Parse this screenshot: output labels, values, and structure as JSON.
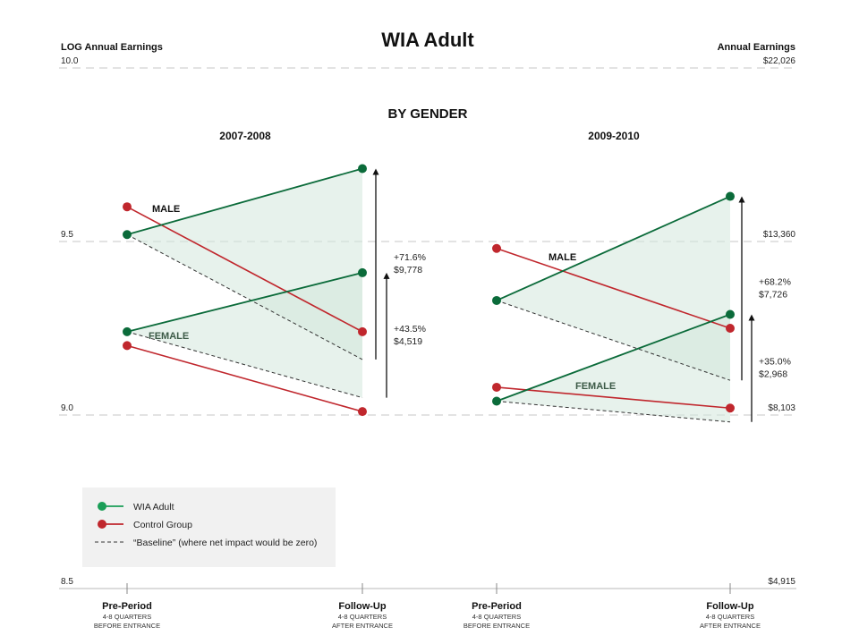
{
  "chart_data": {
    "type": "line",
    "title": "WIA Adult",
    "subtitle": "BY GENDER",
    "y_left_label": "LOG Annual Earnings",
    "y_right_label": "Annual Earnings",
    "ylim": [
      8.5,
      10.0
    ],
    "y_ticks": [
      {
        "log": 10.0,
        "label": "10.0",
        "dollars": "$22,026"
      },
      {
        "log": 9.5,
        "label": "9.5",
        "dollars": "$13,360"
      },
      {
        "log": 9.0,
        "label": "9.0",
        "dollars": "$8,103"
      },
      {
        "log": 8.5,
        "label": "8.5",
        "dollars": "$4,915"
      }
    ],
    "x_categories": [
      {
        "main": "Pre-Period",
        "sub1": "4-8 QUARTERS",
        "sub2": "BEFORE ENTRANCE"
      },
      {
        "main": "Follow-Up",
        "sub1": "4-8 QUARTERS",
        "sub2": "AFTER ENTRANCE"
      }
    ],
    "panels": [
      {
        "title": "2007-2008",
        "groups": [
          {
            "label": "MALE",
            "wia": [
              9.52,
              9.71
            ],
            "control": [
              9.6,
              9.24
            ],
            "baseline": [
              9.52,
              9.16
            ],
            "impact_pct": "+71.6%",
            "impact_dollars": "$9,778"
          },
          {
            "label": "FEMALE",
            "wia": [
              9.24,
              9.41
            ],
            "control": [
              9.2,
              9.01
            ],
            "baseline": [
              9.24,
              9.05
            ],
            "impact_pct": "+43.5%",
            "impact_dollars": "$4,519"
          }
        ]
      },
      {
        "title": "2009-2010",
        "groups": [
          {
            "label": "MALE",
            "wia": [
              9.33,
              9.63
            ],
            "control": [
              9.48,
              9.25
            ],
            "baseline": [
              9.33,
              9.1
            ],
            "impact_pct": "+68.2%",
            "impact_dollars": "$7,726"
          },
          {
            "label": "FEMALE",
            "wia": [
              9.04,
              9.29
            ],
            "control": [
              9.08,
              9.02
            ],
            "baseline": [
              9.04,
              8.98
            ],
            "impact_pct": "+35.0%",
            "impact_dollars": "$2,968"
          }
        ]
      }
    ],
    "legend": {
      "position": "bottom-left",
      "items": [
        {
          "label": "WIA Adult",
          "color": "#1a9e57",
          "style": "line-dot"
        },
        {
          "label": "Control Group",
          "color": "#c0272d",
          "style": "line-dot"
        },
        {
          "label": "“Baseline” (where net impact would be zero)",
          "color": "#333333",
          "style": "dashed"
        }
      ]
    },
    "colors": {
      "wia": "#0b6b3a",
      "control": "#c0272d",
      "fill": "#d4e7dc",
      "fill_dark": "#b7d7c3",
      "grid": "#c7c7c7",
      "legend_bg": "#f1f1f1"
    }
  }
}
